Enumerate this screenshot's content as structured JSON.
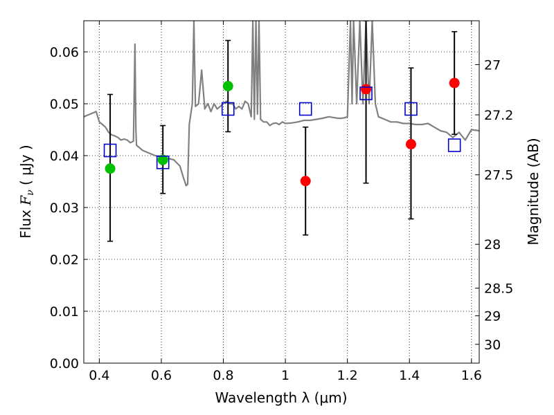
{
  "chart_data": {
    "type": "scatter",
    "title": "",
    "xlabel": "Wavelength  λ (μm)",
    "ylabel": "Flux  F_ν  ( μJy )",
    "y2label": "Magnitude (AB)",
    "xlim": [
      0.35,
      1.625
    ],
    "ylim": [
      0.0,
      0.066
    ],
    "grid": true,
    "x_ticks": [
      0.4,
      0.6,
      0.8,
      1.0,
      1.2,
      1.4,
      1.6
    ],
    "x_tick_labels": [
      "0.4",
      "0.6",
      "0.8",
      "1",
      "1.2",
      "1.4",
      "1.6"
    ],
    "y_ticks": [
      0.0,
      0.01,
      0.02,
      0.03,
      0.04,
      0.05,
      0.06
    ],
    "y_tick_labels": [
      "0.00",
      "0.01",
      "0.02",
      "0.03",
      "0.04",
      "0.05",
      "0.06"
    ],
    "y2_ticks": [
      27,
      27.2,
      27.5,
      28,
      28.5,
      29,
      30
    ],
    "y2_tick_labels": [
      "27",
      "27.2",
      "27.5",
      "28",
      "28.5",
      "29",
      "30"
    ],
    "series": [
      {
        "marker": "circle",
        "color": "#00c000",
        "x": [
          0.435,
          0.605,
          0.815
        ],
        "y": [
          0.0375,
          0.0392,
          0.0534
        ]
      },
      {
        "marker": "circle",
        "color": "#ff0000",
        "x": [
          1.065,
          1.26,
          1.405,
          1.545
        ],
        "y": [
          0.0351,
          0.0528,
          0.0422,
          0.054
        ]
      },
      {
        "marker": "open-square",
        "color": "#0000cc",
        "x": [
          0.435,
          0.605,
          0.815,
          1.065,
          1.26,
          1.405,
          1.545
        ],
        "y": [
          0.041,
          0.0387,
          0.049,
          0.049,
          0.052,
          0.049,
          0.042
        ]
      }
    ],
    "error_bars": {
      "color": "#000000",
      "x": [
        0.435,
        0.605,
        0.815,
        1.065,
        1.26,
        1.405,
        1.545
      ],
      "y": [
        0.0375,
        0.0392,
        0.0534,
        0.0351,
        0.0528,
        0.0422,
        0.054
      ],
      "low": [
        0.0235,
        0.0327,
        0.0446,
        0.0247,
        0.0347,
        0.0278,
        0.0441
      ],
      "high": [
        0.0518,
        0.0458,
        0.0622,
        0.0455,
        0.066,
        0.0569,
        0.0639
      ]
    },
    "spectrum": {
      "color": "#808080",
      "x": [
        0.35,
        0.37,
        0.39,
        0.4,
        0.41,
        0.42,
        0.43,
        0.44,
        0.45,
        0.46,
        0.47,
        0.48,
        0.49,
        0.5,
        0.51,
        0.515,
        0.518,
        0.52,
        0.54,
        0.56,
        0.58,
        0.6,
        0.62,
        0.64,
        0.66,
        0.67,
        0.68,
        0.685,
        0.69,
        0.7,
        0.705,
        0.71,
        0.72,
        0.73,
        0.74,
        0.75,
        0.76,
        0.77,
        0.78,
        0.79,
        0.8,
        0.81,
        0.82,
        0.83,
        0.84,
        0.85,
        0.86,
        0.87,
        0.88,
        0.89,
        0.895,
        0.9,
        0.905,
        0.91,
        0.915,
        0.92,
        0.93,
        0.94,
        0.95,
        0.96,
        0.97,
        0.98,
        0.99,
        1.0,
        1.02,
        1.04,
        1.06,
        1.08,
        1.1,
        1.12,
        1.14,
        1.16,
        1.17,
        1.18,
        1.19,
        1.2,
        1.21,
        1.215,
        1.22,
        1.23,
        1.24,
        1.25,
        1.26,
        1.27,
        1.28,
        1.29,
        1.3,
        1.32,
        1.34,
        1.36,
        1.38,
        1.4,
        1.42,
        1.44,
        1.46,
        1.48,
        1.5,
        1.52,
        1.54,
        1.56,
        1.58,
        1.6,
        1.625
      ],
      "y": [
        0.0475,
        0.048,
        0.0485,
        0.0465,
        0.046,
        0.0455,
        0.0445,
        0.044,
        0.0438,
        0.0435,
        0.043,
        0.0432,
        0.043,
        0.0425,
        0.0428,
        0.0615,
        0.045,
        0.042,
        0.041,
        0.0405,
        0.04,
        0.0398,
        0.0395,
        0.0392,
        0.038,
        0.036,
        0.0342,
        0.0345,
        0.046,
        0.05,
        0.066,
        0.0495,
        0.05,
        0.0565,
        0.049,
        0.05,
        0.0485,
        0.05,
        0.049,
        0.0495,
        0.05,
        0.0505,
        0.05,
        0.05,
        0.049,
        0.0495,
        0.049,
        0.0505,
        0.05,
        0.0475,
        0.066,
        0.047,
        0.066,
        0.048,
        0.066,
        0.047,
        0.0465,
        0.0465,
        0.0458,
        0.0462,
        0.0463,
        0.046,
        0.0465,
        0.0462,
        0.0463,
        0.0465,
        0.0468,
        0.0468,
        0.047,
        0.0472,
        0.0475,
        0.0473,
        0.0472,
        0.0472,
        0.0473,
        0.0475,
        0.066,
        0.05,
        0.066,
        0.05,
        0.066,
        0.05,
        0.066,
        0.05,
        0.066,
        0.05,
        0.0475,
        0.047,
        0.0465,
        0.0465,
        0.0462,
        0.0462,
        0.046,
        0.046,
        0.0462,
        0.0455,
        0.0448,
        0.0445,
        0.0435,
        0.0445,
        0.043,
        0.045,
        0.0448
      ]
    }
  }
}
